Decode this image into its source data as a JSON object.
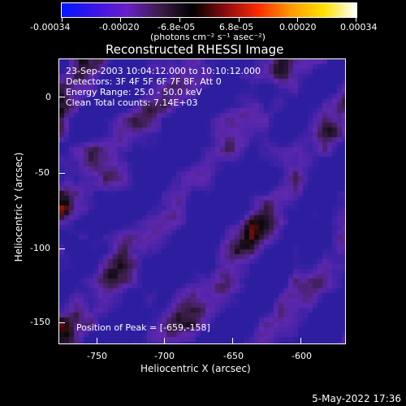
{
  "colorbar": {
    "tick_labels": [
      "-0.00034",
      "-0.00020",
      "-6.8e-05",
      "6.8e-05",
      "0.00020",
      "0.00034"
    ],
    "unit_label": "(photons cm⁻² s⁻¹ asec⁻²)",
    "colors": [
      "#0018ff",
      "#3a14e8",
      "#6a1ec8",
      "#3c1c48",
      "#000000",
      "#8a0c10",
      "#ff2a00",
      "#ff9a00",
      "#ffe000",
      "#ffffff"
    ]
  },
  "plot": {
    "title": "Reconstructed RHESSI Image",
    "xlabel": "Heliocentric X (arcsec)",
    "ylabel": "Heliocentric Y (arcsec)",
    "x_ticks": [
      "-750",
      "-700",
      "-650",
      "-600"
    ],
    "y_ticks": [
      "0",
      "-50",
      "-100",
      "-150"
    ],
    "info_lines": [
      "23-Sep-2003 10:04:12.000 to 10:10:12.000",
      "Detectors: 3F 4F 5F 6F 7F 8F, Att 0",
      "Energy Range: 25.0 - 50.0 keV",
      "Clean    Total counts: 7.14E+03"
    ],
    "peak_label": "Position of Peak = [-659,-158]"
  },
  "footer": {
    "date": "5-May-2022 17:36"
  }
}
